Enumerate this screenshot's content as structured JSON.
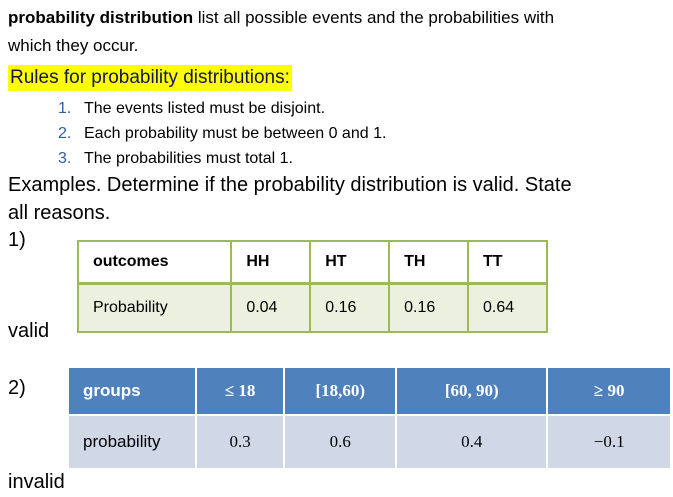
{
  "intro": {
    "bold_term": "probability distribution",
    "text_rest_line1": " list all possible events and the probabilities with",
    "text_line2": "which they occur."
  },
  "rules": {
    "title": "Rules for probability distributions:",
    "items": [
      {
        "num": "1.",
        "text": "The events listed must be disjoint."
      },
      {
        "num": "2.",
        "text": "Each probability must be between 0 and 1."
      },
      {
        "num": "3.",
        "text": "The probabilities must total 1."
      }
    ]
  },
  "examples": {
    "line1": "Examples. Determine if the probability distribution is valid. State",
    "line2": "all reasons."
  },
  "example1": {
    "label": "1)",
    "headers": [
      "outcomes",
      "HH",
      "HT",
      "TH",
      "TT"
    ],
    "row": [
      "Probability",
      "0.04",
      "0.16",
      "0.16",
      "0.64"
    ],
    "answer": "valid"
  },
  "example2": {
    "label": "2)",
    "headers": [
      "groups",
      "≤ 18",
      "[18,60)",
      "[60, 90)",
      "≥ 90"
    ],
    "row": [
      "probability",
      "0.3",
      "0.6",
      "0.4",
      "−0.1"
    ],
    "answer": "invalid"
  },
  "colors": {
    "highlight": "#ffff00",
    "list_number": "#2e5fa3",
    "table1_border": "#9bbb59",
    "table1_row": "#ebf1de",
    "table2_header": "#4f81bd",
    "table2_row": "#d0d8e8"
  }
}
